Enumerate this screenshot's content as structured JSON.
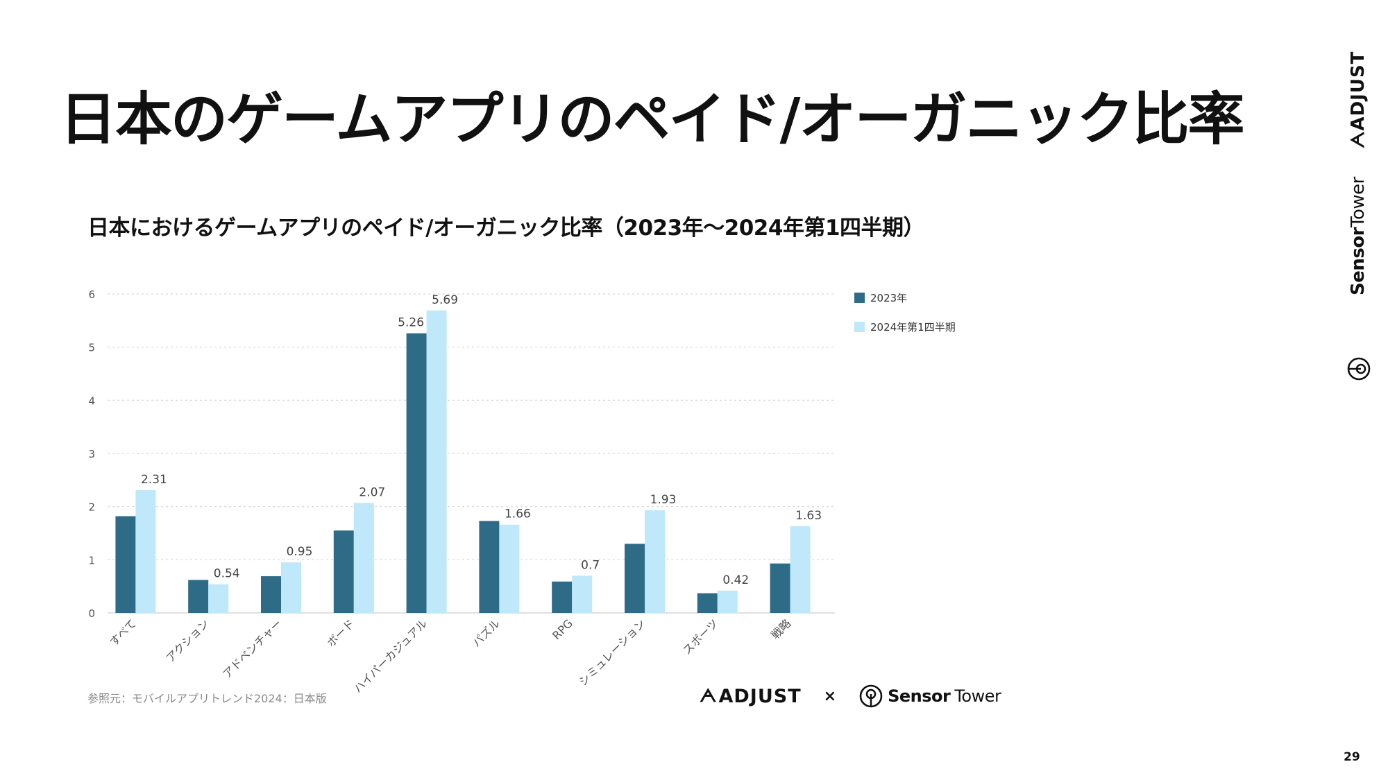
{
  "slide": {
    "title": "日本のゲームアプリのペイド/オーガニック比率",
    "page_number": "29",
    "source_note": "参照元：モバイルアプリトレンド2024：日本版",
    "footer": {
      "adjust": "ADJUST",
      "times": "×",
      "sensor": "Sensor",
      "tower": "Tower"
    },
    "side": {
      "adjust": "ADJUST",
      "sensor": "Sensor",
      "tower": "Tower"
    }
  },
  "colors": {
    "series_2023": "#2e6b87",
    "series_2024q1": "#bfe8fb",
    "grid": "#d6d6d6",
    "axis_text": "#555555",
    "label_text": "#444444"
  },
  "chart_data": {
    "type": "bar",
    "title": "日本におけるゲームアプリのペイド/オーガニック比率（2023年〜2024年第1四半期）",
    "categories": [
      "すべて",
      "アクション",
      "アドベンチャー",
      "ボード",
      "ハイパーカジュアル",
      "パズル",
      "RPG",
      "シミュレーション",
      "スポーツ",
      "戦略"
    ],
    "series": [
      {
        "name": "2023年",
        "values": [
          1.82,
          0.62,
          0.69,
          1.55,
          5.26,
          1.73,
          0.59,
          1.3,
          0.37,
          0.93
        ]
      },
      {
        "name": "2024年第1四半期",
        "values": [
          2.31,
          0.54,
          0.95,
          2.07,
          5.69,
          1.66,
          0.7,
          1.93,
          0.42,
          1.63
        ]
      }
    ],
    "data_labels": {
      "2023年": [
        "",
        "",
        "",
        "",
        "5.26",
        "",
        "",
        "",
        "",
        ""
      ],
      "2024年第1四半期": [
        "2.31",
        "0.54",
        "0.95",
        "2.07",
        "5.69",
        "1.66",
        "0.7",
        "1.93",
        "0.42",
        "1.63"
      ]
    },
    "y_ticks": [
      "0",
      "1",
      "2",
      "3",
      "4",
      "5",
      "6"
    ],
    "ylim": [
      0,
      6
    ],
    "grid": true,
    "legend_position": "right-top",
    "xlabel": "",
    "ylabel": ""
  }
}
